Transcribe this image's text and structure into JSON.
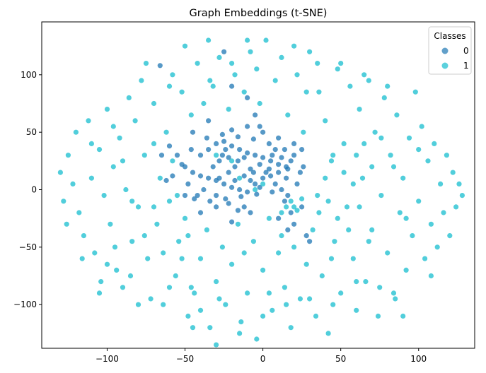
{
  "chart_data": {
    "type": "scatter",
    "title": "Graph Embeddings (t-SNE)",
    "xlabel": "",
    "ylabel": "",
    "xlim": [
      -142,
      136
    ],
    "ylim": [
      -138,
      146
    ],
    "x_ticks": [
      -100,
      -50,
      0,
      50,
      100
    ],
    "y_ticks": [
      -100,
      -50,
      0,
      50,
      100
    ],
    "x_tick_labels": [
      "−100",
      "−50",
      "0",
      "50",
      "100"
    ],
    "y_tick_labels": [
      "−100",
      "−50",
      "0",
      "50",
      "100"
    ],
    "grid": false,
    "legend": {
      "title": "Classes",
      "placement": "top-right",
      "entries": [
        {
          "label": "0",
          "color": "#1f77b4"
        },
        {
          "label": "1",
          "color": "#17becf"
        }
      ]
    },
    "series": [
      {
        "name": "0",
        "color": "#1f77b4",
        "points": [
          [
            -40,
            30
          ],
          [
            -35,
            35
          ],
          [
            -30,
            40
          ],
          [
            -25,
            42
          ],
          [
            -20,
            38
          ],
          [
            -15,
            35
          ],
          [
            -10,
            32
          ],
          [
            -5,
            30
          ],
          [
            0,
            28
          ],
          [
            5,
            25
          ],
          [
            10,
            22
          ],
          [
            15,
            20
          ],
          [
            -45,
            15
          ],
          [
            -40,
            12
          ],
          [
            -35,
            10
          ],
          [
            -30,
            8
          ],
          [
            -25,
            5
          ],
          [
            -20,
            2
          ],
          [
            -15,
            0
          ],
          [
            -10,
            -2
          ],
          [
            -5,
            5
          ],
          [
            0,
            10
          ],
          [
            5,
            12
          ],
          [
            10,
            15
          ],
          [
            15,
            10
          ],
          [
            -50,
            20
          ],
          [
            -48,
            5
          ],
          [
            -42,
            -5
          ],
          [
            -38,
            0
          ],
          [
            -32,
            20
          ],
          [
            -28,
            25
          ],
          [
            -22,
            15
          ],
          [
            -18,
            20
          ],
          [
            -12,
            12
          ],
          [
            -8,
            18
          ],
          [
            -2,
            22
          ],
          [
            2,
            15
          ],
          [
            8,
            5
          ],
          [
            12,
            0
          ],
          [
            18,
            25
          ],
          [
            -55,
            30
          ],
          [
            -52,
            22
          ],
          [
            -46,
            35
          ],
          [
            -36,
            45
          ],
          [
            -26,
            48
          ],
          [
            -16,
            46
          ],
          [
            -6,
            44
          ],
          [
            4,
            40
          ],
          [
            14,
            35
          ],
          [
            20,
            30
          ],
          [
            -44,
            -8
          ],
          [
            -34,
            -10
          ],
          [
            -24,
            -8
          ],
          [
            -14,
            -6
          ],
          [
            -4,
            -4
          ],
          [
            6,
            -2
          ],
          [
            16,
            -5
          ],
          [
            22,
            5
          ],
          [
            24,
            15
          ],
          [
            26,
            20
          ],
          [
            -58,
            12
          ],
          [
            -62,
            8
          ],
          [
            -65,
            30
          ],
          [
            -60,
            38
          ],
          [
            -20,
            52
          ],
          [
            -10,
            55
          ],
          [
            0,
            50
          ],
          [
            10,
            45
          ],
          [
            -30,
            -5
          ],
          [
            -28,
            10
          ],
          [
            -26,
            30
          ],
          [
            -24,
            35
          ],
          [
            -22,
            28
          ],
          [
            -18,
            8
          ],
          [
            -16,
            25
          ],
          [
            -12,
            28
          ],
          [
            -8,
            8
          ],
          [
            -6,
            15
          ],
          [
            -2,
            2
          ],
          [
            4,
            18
          ],
          [
            6,
            30
          ],
          [
            8,
            35
          ],
          [
            12,
            28
          ],
          [
            16,
            18
          ],
          [
            14,
            -10
          ],
          [
            18,
            -20
          ],
          [
            20,
            -30
          ],
          [
            16,
            -35
          ],
          [
            10,
            -25
          ],
          [
            25,
            -15
          ],
          [
            -8,
            -20
          ],
          [
            -12,
            -15
          ],
          [
            -16,
            -18
          ],
          [
            28,
            -40
          ],
          [
            30,
            -45
          ],
          [
            -35,
            60
          ],
          [
            -30,
            -15
          ],
          [
            -22,
            -12
          ],
          [
            -50,
            -5
          ],
          [
            -66,
            108
          ],
          [
            -25,
            120
          ],
          [
            -20,
            90
          ],
          [
            -10,
            80
          ],
          [
            -5,
            65
          ],
          [
            -2,
            55
          ],
          [
            -45,
            50
          ],
          [
            20,
            40
          ],
          [
            25,
            35
          ],
          [
            -40,
            -20
          ],
          [
            -20,
            -28
          ]
        ]
      },
      {
        "name": "1",
        "color": "#17becf",
        "points": [
          [
            -130,
            15
          ],
          [
            -128,
            -10
          ],
          [
            -125,
            30
          ],
          [
            -120,
            50
          ],
          [
            -118,
            -20
          ],
          [
            -115,
            -40
          ],
          [
            -112,
            60
          ],
          [
            -110,
            10
          ],
          [
            -108,
            -55
          ],
          [
            -105,
            35
          ],
          [
            -102,
            -5
          ],
          [
            -100,
            70
          ],
          [
            -98,
            -30
          ],
          [
            -96,
            20
          ],
          [
            -94,
            -70
          ],
          [
            -92,
            45
          ],
          [
            -90,
            -85
          ],
          [
            -88,
            0
          ],
          [
            -86,
            80
          ],
          [
            -84,
            -45
          ],
          [
            -82,
            60
          ],
          [
            -80,
            -15
          ],
          [
            -78,
            95
          ],
          [
            -76,
            30
          ],
          [
            -74,
            -60
          ],
          [
            -72,
            -95
          ],
          [
            -70,
            75
          ],
          [
            -68,
            -30
          ],
          [
            -66,
            10
          ],
          [
            -64,
            -100
          ],
          [
            -62,
            50
          ],
          [
            -60,
            -10
          ],
          [
            -58,
            100
          ],
          [
            -56,
            -75
          ],
          [
            -54,
            -45
          ],
          [
            -52,
            85
          ],
          [
            -50,
            -25
          ],
          [
            -48,
            -110
          ],
          [
            -46,
            65
          ],
          [
            -44,
            -90
          ],
          [
            -42,
            110
          ],
          [
            -40,
            -60
          ],
          [
            -38,
            75
          ],
          [
            -36,
            -35
          ],
          [
            -34,
            -120
          ],
          [
            -32,
            90
          ],
          [
            -30,
            -80
          ],
          [
            -28,
            115
          ],
          [
            -26,
            -50
          ],
          [
            -24,
            -100
          ],
          [
            -22,
            70
          ],
          [
            -20,
            -65
          ],
          [
            -18,
            100
          ],
          [
            -16,
            -30
          ],
          [
            -14,
            -115
          ],
          [
            -12,
            85
          ],
          [
            -10,
            -90
          ],
          [
            -8,
            120
          ],
          [
            -6,
            -45
          ],
          [
            -4,
            -130
          ],
          [
            -2,
            75
          ],
          [
            0,
            -70
          ],
          [
            2,
            130
          ],
          [
            4,
            -25
          ],
          [
            6,
            -105
          ],
          [
            8,
            95
          ],
          [
            10,
            -55
          ],
          [
            12,
            115
          ],
          [
            14,
            -85
          ],
          [
            16,
            65
          ],
          [
            18,
            -120
          ],
          [
            20,
            -15
          ],
          [
            22,
            100
          ],
          [
            24,
            -95
          ],
          [
            26,
            50
          ],
          [
            28,
            -65
          ],
          [
            30,
            120
          ],
          [
            32,
            -35
          ],
          [
            34,
            -110
          ],
          [
            36,
            85
          ],
          [
            38,
            -75
          ],
          [
            40,
            60
          ],
          [
            42,
            -125
          ],
          [
            44,
            25
          ],
          [
            46,
            -45
          ],
          [
            48,
            105
          ],
          [
            50,
            -90
          ],
          [
            52,
            40
          ],
          [
            54,
            -15
          ],
          [
            56,
            90
          ],
          [
            58,
            -60
          ],
          [
            60,
            -105
          ],
          [
            62,
            70
          ],
          [
            64,
            10
          ],
          [
            66,
            -80
          ],
          [
            68,
            95
          ],
          [
            70,
            -35
          ],
          [
            72,
            50
          ],
          [
            74,
            -110
          ],
          [
            76,
            -5
          ],
          [
            78,
            80
          ],
          [
            80,
            -55
          ],
          [
            82,
            30
          ],
          [
            84,
            -90
          ],
          [
            86,
            65
          ],
          [
            88,
            -20
          ],
          [
            90,
            10
          ],
          [
            92,
            -70
          ],
          [
            94,
            45
          ],
          [
            96,
            -40
          ],
          [
            98,
            85
          ],
          [
            100,
            -10
          ],
          [
            102,
            55
          ],
          [
            104,
            -60
          ],
          [
            106,
            25
          ],
          [
            108,
            -30
          ],
          [
            110,
            40
          ],
          [
            112,
            -50
          ],
          [
            114,
            5
          ],
          [
            116,
            -20
          ],
          [
            118,
            30
          ],
          [
            120,
            -40
          ],
          [
            122,
            15
          ],
          [
            124,
            -15
          ],
          [
            126,
            5
          ],
          [
            128,
            -5
          ],
          [
            -126,
            -30
          ],
          [
            -122,
            5
          ],
          [
            -116,
            -60
          ],
          [
            -110,
            40
          ],
          [
            -104,
            -80
          ],
          [
            -96,
            55
          ],
          [
            -90,
            25
          ],
          [
            -84,
            -10
          ],
          [
            -76,
            -40
          ],
          [
            -70,
            40
          ],
          [
            -64,
            -55
          ],
          [
            -58,
            25
          ],
          [
            -52,
            -60
          ],
          [
            -46,
            -85
          ],
          [
            -40,
            -105
          ],
          [
            -34,
            95
          ],
          [
            -28,
            -95
          ],
          [
            -20,
            110
          ],
          [
            -12,
            -55
          ],
          [
            -4,
            105
          ],
          [
            4,
            -90
          ],
          [
            12,
            -40
          ],
          [
            20,
            -50
          ],
          [
            28,
            85
          ],
          [
            36,
            -20
          ],
          [
            44,
            -60
          ],
          [
            52,
            15
          ],
          [
            60,
            30
          ],
          [
            68,
            -45
          ],
          [
            76,
            45
          ],
          [
            84,
            20
          ],
          [
            92,
            -25
          ],
          [
            100,
            35
          ],
          [
            108,
            -75
          ],
          [
            15,
            -15
          ],
          [
            18,
            -10
          ],
          [
            22,
            -18
          ],
          [
            12,
            -20
          ],
          [
            25,
            -8
          ],
          [
            -5,
            0
          ],
          [
            0,
            5
          ],
          [
            -30,
            30
          ],
          [
            -15,
            10
          ],
          [
            -20,
            25
          ],
          [
            40,
            10
          ],
          [
            45,
            30
          ],
          [
            35,
            -5
          ],
          [
            42,
            -10
          ],
          [
            48,
            -25
          ],
          [
            55,
            -35
          ],
          [
            62,
            -15
          ],
          [
            58,
            5
          ],
          [
            65,
            40
          ],
          [
            70,
            20
          ],
          [
            -85,
            -75
          ],
          [
            -80,
            -100
          ],
          [
            -95,
            -50
          ],
          [
            -100,
            -65
          ],
          [
            -105,
            -90
          ],
          [
            -60,
            -85
          ],
          [
            -45,
            -120
          ],
          [
            -30,
            -135
          ],
          [
            -15,
            -125
          ],
          [
            0,
            -110
          ],
          [
            15,
            -100
          ],
          [
            30,
            -95
          ],
          [
            45,
            -100
          ],
          [
            60,
            -80
          ],
          [
            75,
            -85
          ],
          [
            85,
            -95
          ],
          [
            90,
            -110
          ],
          [
            35,
            110
          ],
          [
            50,
            110
          ],
          [
            65,
            100
          ],
          [
            80,
            90
          ],
          [
            -75,
            110
          ],
          [
            -60,
            90
          ],
          [
            -50,
            125
          ],
          [
            -35,
            130
          ],
          [
            -10,
            130
          ],
          [
            20,
            125
          ],
          [
            -70,
            -15
          ],
          [
            -55,
            -5
          ],
          [
            -48,
            -40
          ]
        ]
      }
    ]
  }
}
